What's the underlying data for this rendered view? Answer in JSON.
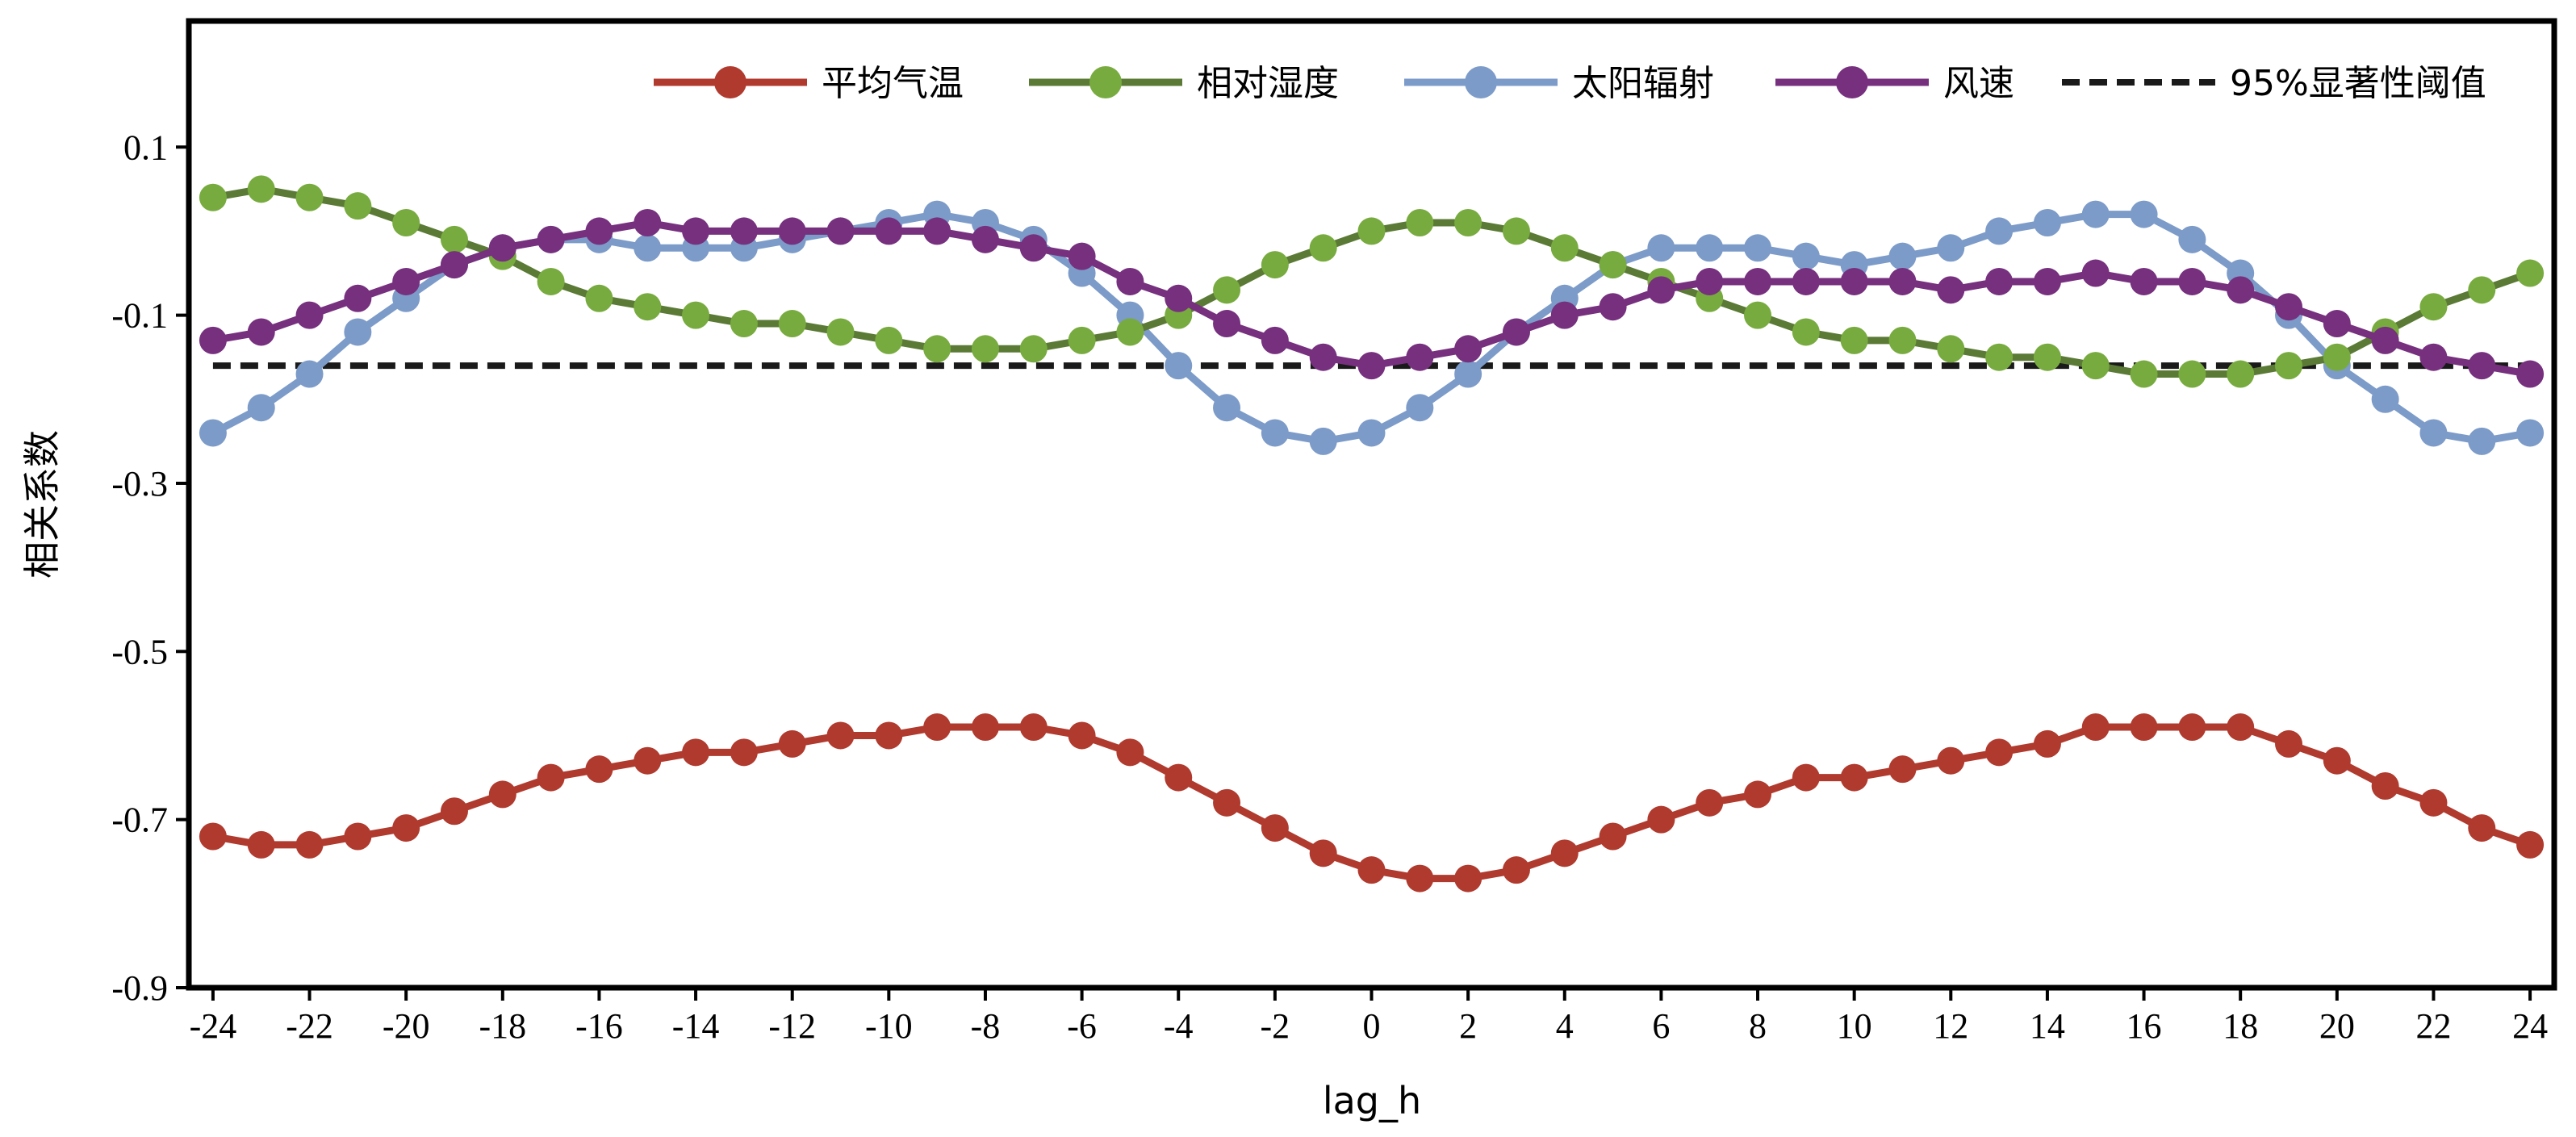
{
  "chart_data": {
    "type": "line",
    "title": "",
    "xlabel": "lag_h",
    "ylabel": "相关系数",
    "xlim": [
      -24.5,
      24.5
    ],
    "ylim": [
      -0.9,
      0.25
    ],
    "xticks": [
      -24,
      -22,
      -20,
      -18,
      -16,
      -14,
      -12,
      -10,
      -8,
      -6,
      -4,
      -2,
      0,
      2,
      4,
      6,
      8,
      10,
      12,
      14,
      16,
      18,
      20,
      22,
      24
    ],
    "xtick_labels": [
      "-24",
      "-22",
      "-20",
      "-18",
      "-16",
      "-14",
      "-12",
      "-10",
      "-8",
      "-6",
      "-4",
      "-2",
      "0",
      "2",
      "4",
      "6",
      "8",
      "10",
      "12",
      "14",
      "16",
      "18",
      "20",
      "22",
      "24"
    ],
    "yticks": [
      0.1,
      -0.1,
      -0.3,
      -0.5,
      -0.7,
      -0.9
    ],
    "ytick_labels": [
      "0.1",
      "-0.1",
      "-0.3",
      "-0.5",
      "-0.7",
      "-0.9"
    ],
    "grid": false,
    "legend_position": "top-right",
    "x": [
      -24,
      -23,
      -22,
      -21,
      -20,
      -19,
      -18,
      -17,
      -16,
      -15,
      -14,
      -13,
      -12,
      -11,
      -10,
      -9,
      -8,
      -7,
      -6,
      -5,
      -4,
      -3,
      -2,
      -1,
      0,
      1,
      2,
      3,
      4,
      5,
      6,
      7,
      8,
      9,
      10,
      11,
      12,
      13,
      14,
      15,
      16,
      17,
      18,
      19,
      20,
      21,
      22,
      23,
      24
    ],
    "series": [
      {
        "name": "平均气温",
        "color": "#b03a2e",
        "marker": true,
        "dashed": false,
        "values": [
          -0.72,
          -0.73,
          -0.73,
          -0.72,
          -0.71,
          -0.69,
          -0.67,
          -0.65,
          -0.64,
          -0.63,
          -0.62,
          -0.62,
          -0.61,
          -0.6,
          -0.6,
          -0.59,
          -0.59,
          -0.59,
          -0.6,
          -0.62,
          -0.65,
          -0.68,
          -0.71,
          -0.74,
          -0.76,
          -0.77,
          -0.77,
          -0.76,
          -0.74,
          -0.72,
          -0.7,
          -0.68,
          -0.67,
          -0.65,
          -0.65,
          -0.64,
          -0.63,
          -0.62,
          -0.61,
          -0.59,
          -0.59,
          -0.59,
          -0.59,
          -0.61,
          -0.63,
          -0.66,
          -0.68,
          -0.71,
          -0.73
        ]
      },
      {
        "name": "相对湿度",
        "color": "#5a7a35",
        "marker_color": "#78ab3f",
        "marker": true,
        "dashed": false,
        "values": [
          0.04,
          0.05,
          0.04,
          0.03,
          0.01,
          -0.01,
          -0.03,
          -0.06,
          -0.08,
          -0.09,
          -0.1,
          -0.11,
          -0.11,
          -0.12,
          -0.13,
          -0.14,
          -0.14,
          -0.14,
          -0.13,
          -0.12,
          -0.1,
          -0.07,
          -0.04,
          -0.02,
          0.0,
          0.01,
          0.01,
          0.0,
          -0.02,
          -0.04,
          -0.06,
          -0.08,
          -0.1,
          -0.12,
          -0.13,
          -0.13,
          -0.14,
          -0.15,
          -0.15,
          -0.16,
          -0.17,
          -0.17,
          -0.17,
          -0.16,
          -0.15,
          -0.12,
          -0.09,
          -0.07,
          -0.05
        ]
      },
      {
        "name": "太阳辐射",
        "color": "#7c9bc8",
        "marker": true,
        "dashed": false,
        "values": [
          -0.24,
          -0.21,
          -0.17,
          -0.12,
          -0.08,
          -0.04,
          -0.02,
          -0.01,
          -0.01,
          -0.02,
          -0.02,
          -0.02,
          -0.01,
          0.0,
          0.01,
          0.02,
          0.01,
          -0.01,
          -0.05,
          -0.1,
          -0.16,
          -0.21,
          -0.24,
          -0.25,
          -0.24,
          -0.21,
          -0.17,
          -0.12,
          -0.08,
          -0.04,
          -0.02,
          -0.02,
          -0.02,
          -0.03,
          -0.04,
          -0.03,
          -0.02,
          0.0,
          0.01,
          0.02,
          0.02,
          -0.01,
          -0.05,
          -0.1,
          -0.16,
          -0.2,
          -0.24,
          -0.25,
          -0.24
        ]
      },
      {
        "name": "风速",
        "color": "#76307e",
        "marker": true,
        "dashed": false,
        "values": [
          -0.13,
          -0.12,
          -0.1,
          -0.08,
          -0.06,
          -0.04,
          -0.02,
          -0.01,
          0.0,
          0.01,
          0.0,
          0.0,
          0.0,
          0.0,
          0.0,
          0.0,
          -0.01,
          -0.02,
          -0.03,
          -0.06,
          -0.08,
          -0.11,
          -0.13,
          -0.15,
          -0.16,
          -0.15,
          -0.14,
          -0.12,
          -0.1,
          -0.09,
          -0.07,
          -0.06,
          -0.06,
          -0.06,
          -0.06,
          -0.06,
          -0.07,
          -0.06,
          -0.06,
          -0.05,
          -0.06,
          -0.06,
          -0.07,
          -0.09,
          -0.11,
          -0.13,
          -0.15,
          -0.16,
          -0.17
        ]
      },
      {
        "name": "95%显著性阈值",
        "color": "#1a1a1a",
        "marker": false,
        "dashed": true,
        "constant": -0.16
      }
    ]
  }
}
